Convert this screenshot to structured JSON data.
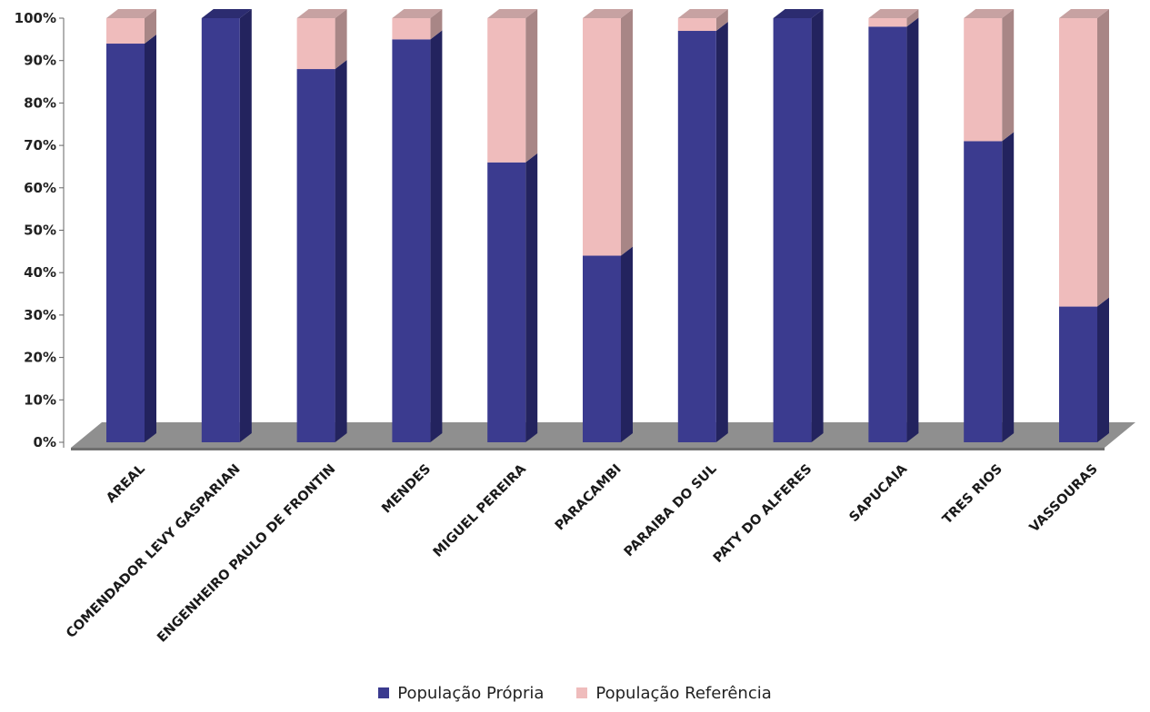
{
  "chart_data": {
    "type": "bar",
    "stacked": "percent",
    "three_d": true,
    "categories": [
      "AREAL",
      "COMENDADOR LEVY GASPARIAN",
      "ENGENHEIRO PAULO DE FRONTIN",
      "MENDES",
      "MIGUEL PEREIRA",
      "PARACAMBI",
      "PARAIBA DO SUL",
      "PATY DO ALFERES",
      "SAPUCAIA",
      "TRES RIOS",
      "VASSOURAS"
    ],
    "series": [
      {
        "name": "População Própria",
        "color": "#3b3b8f",
        "values": [
          94,
          100,
          88,
          95,
          66,
          44,
          97,
          100,
          98,
          71,
          32
        ]
      },
      {
        "name": "População Referência",
        "color": "#efbcbc",
        "values": [
          6,
          0,
          12,
          5,
          34,
          56,
          3,
          0,
          2,
          29,
          68
        ]
      }
    ],
    "y_ticks": [
      "0%",
      "10%",
      "20%",
      "30%",
      "40%",
      "50%",
      "60%",
      "70%",
      "80%",
      "90%",
      "100%"
    ],
    "ylim": [
      0,
      100
    ],
    "grid": false,
    "legend_position": "bottom"
  }
}
